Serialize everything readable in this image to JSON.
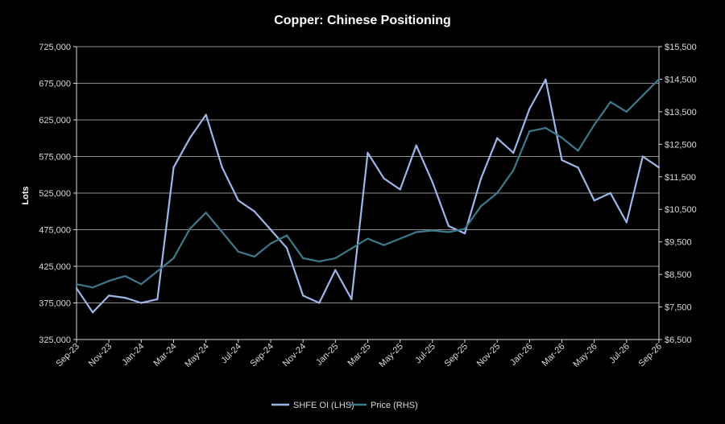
{
  "chart_data": {
    "type": "line",
    "title": "Copper: Chinese Positioning",
    "ylabel": "Lots",
    "y2label": "",
    "x_tick_labels": [
      "Sep-23",
      "Nov-23",
      "Jan-24",
      "Mar-24",
      "May-24",
      "Jul-24",
      "Sep-24",
      "Nov-24",
      "Jan-25",
      "Mar-25",
      "May-25",
      "Jul-25",
      "Sep-25",
      "Nov-25",
      "Jan-26",
      "Mar-26",
      "May-26",
      "Jul-26",
      "Sep-26"
    ],
    "ylim": [
      325000,
      725000
    ],
    "y_ticks": [
      "325,000",
      "375,000",
      "425,000",
      "475,000",
      "525,000",
      "575,000",
      "625,000",
      "675,000",
      "725,000"
    ],
    "y2lim": [
      6500,
      15500
    ],
    "y2_ticks": [
      "$6,500",
      "$7,500",
      "$8,500",
      "$9,500",
      "$10,500",
      "$11,500",
      "$12,500",
      "$13,500",
      "$14,500",
      "$15,500"
    ],
    "grid": true,
    "legend_position": "bottom",
    "series": [
      {
        "name": "SHFE OI (LHS)",
        "axis": "left",
        "color": "#9fb6e8",
        "x": [
          "Sep-23",
          "Oct-23",
          "Nov-23",
          "Dec-23",
          "Jan-24",
          "Feb-24",
          "Mar-24",
          "Apr-24",
          "May-24",
          "Jun-24",
          "Jul-24",
          "Aug-24",
          "Sep-24",
          "Oct-24",
          "Nov-24",
          "Dec-24",
          "Jan-25",
          "Feb-25",
          "Mar-25",
          "Apr-25",
          "May-25",
          "Jun-25",
          "Jul-25",
          "Aug-25",
          "Sep-25",
          "Oct-25",
          "Nov-25",
          "Dec-25",
          "Jan-26",
          "Feb-26",
          "Mar-26",
          "Apr-26",
          "May-26",
          "Jun-26",
          "Jul-26",
          "Aug-26",
          "Sep-26"
        ],
        "values": [
          395000,
          362000,
          385000,
          382000,
          375000,
          380000,
          560000,
          600000,
          632000,
          560000,
          515000,
          500000,
          475000,
          450000,
          385000,
          375000,
          420000,
          380000,
          580000,
          545000,
          530000,
          590000,
          540000,
          480000,
          470000,
          545000,
          600000,
          580000,
          640000,
          680000,
          570000,
          560000,
          515000,
          525000,
          485000,
          575000,
          560000
        ]
      },
      {
        "name": "Price (RHS)",
        "axis": "right",
        "color": "#3d7a8c",
        "x": [
          "Sep-23",
          "Oct-23",
          "Nov-23",
          "Dec-23",
          "Jan-24",
          "Feb-24",
          "Mar-24",
          "Apr-24",
          "May-24",
          "Jun-24",
          "Jul-24",
          "Aug-24",
          "Sep-24",
          "Oct-24",
          "Nov-24",
          "Dec-24",
          "Jan-25",
          "Feb-25",
          "Mar-25",
          "Apr-25",
          "May-25",
          "Jun-25",
          "Jul-25",
          "Aug-25",
          "Sep-25",
          "Oct-25",
          "Nov-25",
          "Dec-25",
          "Jan-26",
          "Feb-26",
          "Mar-26",
          "Apr-26",
          "May-26",
          "Jun-26",
          "Jul-26",
          "Aug-26",
          "Sep-26"
        ],
        "values": [
          8200,
          8100,
          8300,
          8450,
          8200,
          8600,
          9000,
          9900,
          10400,
          9800,
          9200,
          9050,
          9450,
          9700,
          9000,
          8900,
          9000,
          9300,
          9600,
          9400,
          9600,
          9800,
          9850,
          9800,
          9900,
          10600,
          11000,
          11700,
          12900,
          13000,
          12700,
          12300,
          13100,
          13800,
          13500,
          14000,
          14500
        ]
      }
    ]
  }
}
